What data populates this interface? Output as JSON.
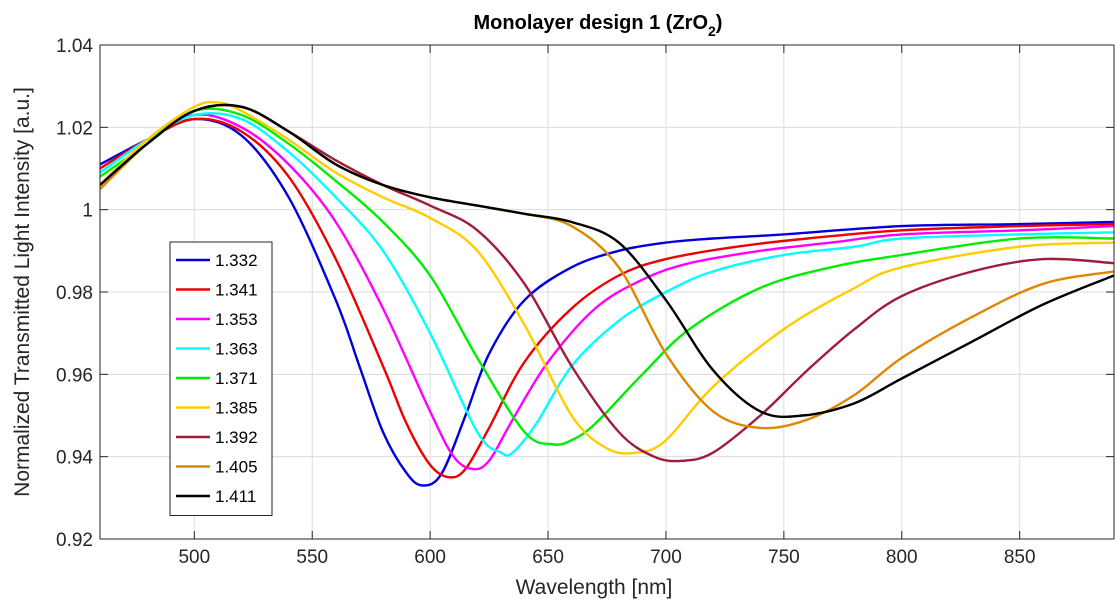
{
  "chart_data": {
    "type": "line",
    "title": "Monolayer design 1 (ZrO",
    "title_subscript": "2",
    "title_suffix": ")",
    "xlabel": "Wavelength [nm]",
    "ylabel": "Normalized Transmitted Light Intensity [a.u.]",
    "xlim": [
      460,
      890
    ],
    "ylim": [
      0.92,
      1.04
    ],
    "xticks": [
      500,
      550,
      600,
      650,
      700,
      750,
      800,
      850
    ],
    "yticks": [
      0.92,
      0.94,
      0.96,
      0.98,
      1,
      1.02,
      1.04
    ],
    "ytick_labels": [
      "0.92",
      "0.94",
      "0.96",
      "0.98",
      "1",
      "1.02",
      "1.04"
    ],
    "grid": true,
    "legend_position": "left-lower",
    "series": [
      {
        "name": "1.332",
        "color": "#0000dd",
        "x": [
          460,
          480,
          500,
          520,
          540,
          560,
          570,
          580,
          590,
          597,
          605,
          615,
          625,
          640,
          660,
          680,
          700,
          720,
          750,
          800,
          850,
          890
        ],
        "y": [
          1.011,
          1.017,
          1.022,
          1.018,
          1.003,
          0.978,
          0.962,
          0.946,
          0.936,
          0.933,
          0.936,
          0.95,
          0.965,
          0.978,
          0.986,
          0.99,
          0.992,
          0.993,
          0.994,
          0.996,
          0.9965,
          0.997
        ]
      },
      {
        "name": "1.341",
        "color": "#ee0000",
        "x": [
          460,
          480,
          500,
          520,
          540,
          560,
          580,
          590,
          600,
          608,
          615,
          625,
          640,
          660,
          680,
          700,
          730,
          760,
          800,
          850,
          890
        ],
        "y": [
          1.01,
          1.017,
          1.022,
          1.019,
          1.008,
          0.988,
          0.962,
          0.948,
          0.938,
          0.935,
          0.937,
          0.947,
          0.963,
          0.976,
          0.984,
          0.988,
          0.991,
          0.993,
          0.995,
          0.996,
          0.9965
        ]
      },
      {
        "name": "1.353",
        "color": "#ff00ff",
        "x": [
          460,
          480,
          500,
          520,
          540,
          560,
          580,
          600,
          610,
          618,
          625,
          635,
          650,
          670,
          690,
          710,
          740,
          770,
          800,
          850,
          890
        ],
        "y": [
          1.009,
          1.017,
          1.023,
          1.02,
          1.011,
          0.997,
          0.976,
          0.951,
          0.94,
          0.937,
          0.939,
          0.949,
          0.963,
          0.976,
          0.983,
          0.987,
          0.99,
          0.992,
          0.994,
          0.995,
          0.996
        ]
      },
      {
        "name": "1.363",
        "color": "#00ffff",
        "x": [
          460,
          480,
          500,
          520,
          540,
          560,
          580,
          600,
          620,
          630,
          635,
          645,
          660,
          680,
          700,
          720,
          750,
          780,
          800,
          850,
          890
        ],
        "y": [
          1.009,
          1.017,
          1.023,
          1.022,
          1.014,
          1.003,
          0.99,
          0.97,
          0.946,
          0.941,
          0.941,
          0.948,
          0.962,
          0.973,
          0.98,
          0.985,
          0.989,
          0.991,
          0.993,
          0.994,
          0.9945
        ]
      },
      {
        "name": "1.371",
        "color": "#00ee00",
        "x": [
          460,
          480,
          500,
          520,
          540,
          560,
          580,
          600,
          620,
          640,
          652,
          660,
          670,
          690,
          710,
          740,
          770,
          800,
          850,
          890
        ],
        "y": [
          1.008,
          1.016,
          1.024,
          1.023,
          1.016,
          1.007,
          0.997,
          0.984,
          0.964,
          0.946,
          0.943,
          0.944,
          0.948,
          0.96,
          0.971,
          0.981,
          0.986,
          0.989,
          0.993,
          0.993
        ]
      },
      {
        "name": "1.385",
        "color": "#ffcc00",
        "x": [
          460,
          480,
          500,
          510,
          520,
          540,
          560,
          580,
          600,
          620,
          640,
          660,
          675,
          688,
          700,
          720,
          750,
          780,
          800,
          850,
          890
        ],
        "y": [
          1.006,
          1.017,
          1.025,
          1.026,
          1.024,
          1.017,
          1.009,
          1.003,
          0.998,
          0.99,
          0.972,
          0.95,
          0.942,
          0.941,
          0.944,
          0.957,
          0.971,
          0.981,
          0.986,
          0.991,
          0.992
        ]
      },
      {
        "name": "1.392",
        "color": "#a01c3c",
        "x": [
          460,
          480,
          500,
          520,
          540,
          560,
          580,
          600,
          620,
          640,
          660,
          680,
          695,
          707,
          720,
          740,
          760,
          780,
          800,
          830,
          860,
          890
        ],
        "y": [
          1.006,
          1.016,
          1.024,
          1.025,
          1.019,
          1.012,
          1.006,
          1.001,
          0.995,
          0.982,
          0.962,
          0.946,
          0.94,
          0.939,
          0.941,
          0.95,
          0.961,
          0.971,
          0.979,
          0.985,
          0.988,
          0.987
        ]
      },
      {
        "name": "1.405",
        "color": "#dd8800",
        "x": [
          460,
          480,
          500,
          520,
          540,
          560,
          580,
          600,
          620,
          640,
          660,
          680,
          700,
          720,
          740,
          760,
          780,
          800,
          830,
          860,
          890
        ],
        "y": [
          1.005,
          1.016,
          1.024,
          1.025,
          1.019,
          1.011,
          1.006,
          1.003,
          1.001,
          0.999,
          0.996,
          0.986,
          0.965,
          0.951,
          0.947,
          0.949,
          0.955,
          0.964,
          0.974,
          0.982,
          0.985
        ]
      },
      {
        "name": "1.411",
        "color": "#000000",
        "x": [
          460,
          480,
          500,
          520,
          540,
          560,
          580,
          600,
          620,
          640,
          660,
          680,
          700,
          720,
          740,
          758,
          780,
          800,
          830,
          860,
          890
        ],
        "y": [
          1.006,
          1.016,
          1.024,
          1.025,
          1.019,
          1.011,
          1.006,
          1.003,
          1.001,
          0.999,
          0.997,
          0.992,
          0.978,
          0.961,
          0.951,
          0.95,
          0.953,
          0.959,
          0.968,
          0.977,
          0.984
        ]
      }
    ]
  }
}
